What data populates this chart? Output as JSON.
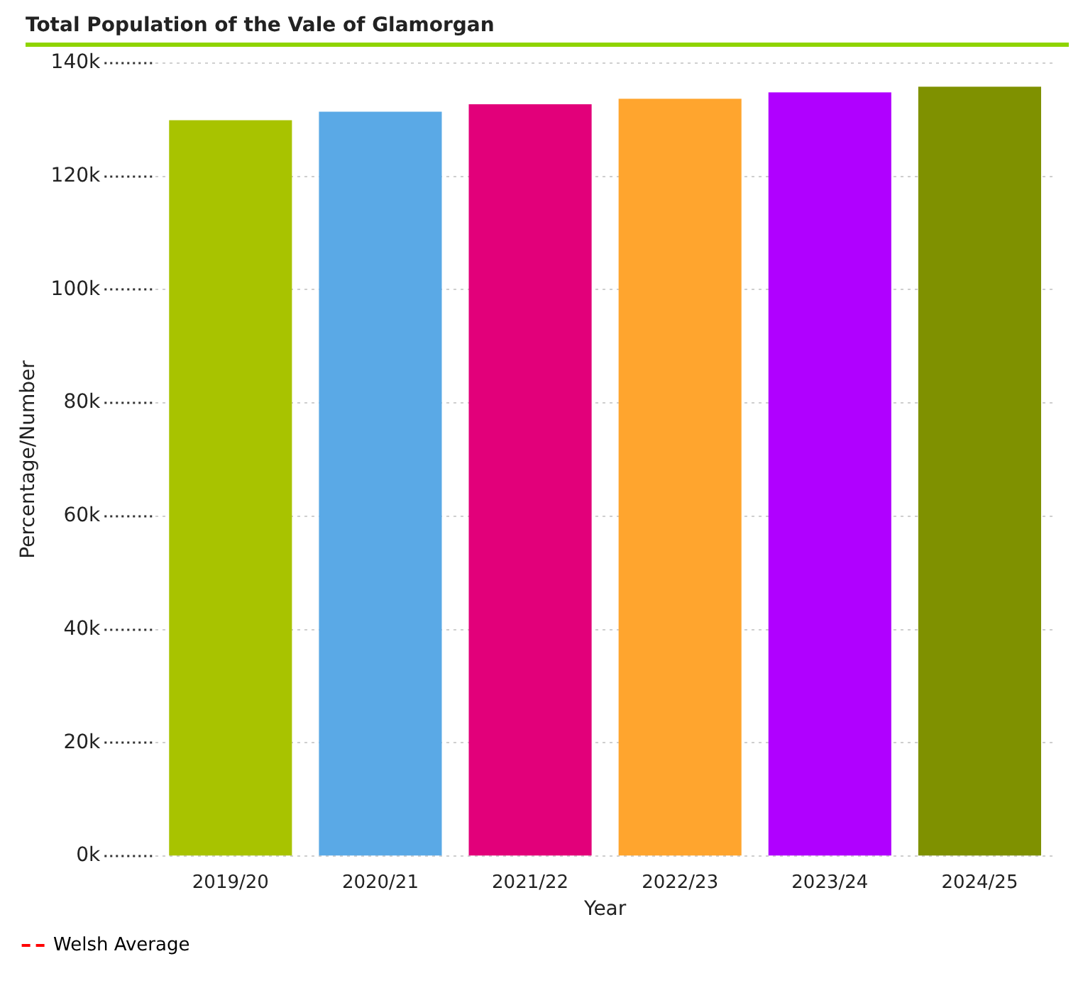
{
  "chart_data": {
    "type": "bar",
    "title": "Total Population of the Vale of Glamorgan",
    "xlabel": "Year",
    "ylabel": "Percentage/Number",
    "categories": [
      "2019/20",
      "2020/21",
      "2021/22",
      "2022/23",
      "2023/24",
      "2024/25"
    ],
    "series": [
      {
        "values": [
          129900,
          131400,
          132700,
          133700,
          134800,
          135800
        ],
        "colors": [
          "#a8c300",
          "#5aa9e6",
          "#e2007a",
          "#ffa52e",
          "#b000ff",
          "#7f9100"
        ]
      },
      {
        "name": "Welsh Average",
        "type": "line",
        "color": "#ff0000",
        "line_style": "dashed",
        "values": [
          null,
          null,
          null,
          null,
          null,
          null
        ]
      }
    ],
    "ylim": [
      0,
      140000
    ],
    "yticks": [
      {
        "value": 0,
        "label": "0k"
      },
      {
        "value": 20000,
        "label": "20k"
      },
      {
        "value": 40000,
        "label": "40k"
      },
      {
        "value": 60000,
        "label": "60k"
      },
      {
        "value": 80000,
        "label": "80k"
      },
      {
        "value": 100000,
        "label": "100k"
      },
      {
        "value": 120000,
        "label": "120k"
      },
      {
        "value": 140000,
        "label": "140k"
      }
    ],
    "grid": "y",
    "legend": "bottom left"
  }
}
